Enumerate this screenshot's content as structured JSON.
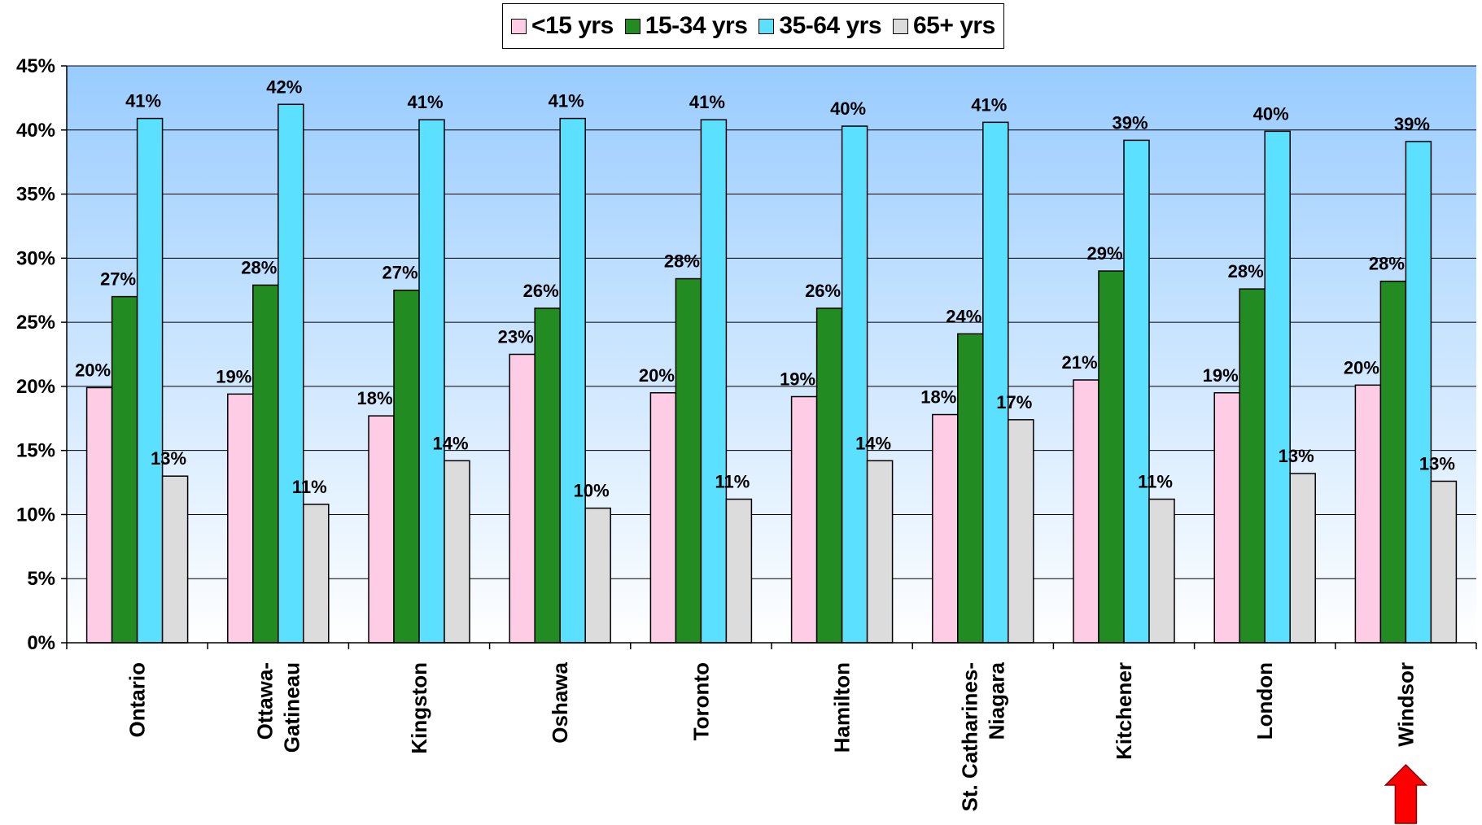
{
  "chart_data": {
    "type": "bar",
    "categories": [
      "Ontario",
      "Ottawa-Gatineau",
      "Kingston",
      "Oshawa",
      "Toronto",
      "Hamilton",
      "St. Catharines-Niagara",
      "Kitchener",
      "London",
      "Windsor"
    ],
    "category_lines": [
      [
        "Ontario"
      ],
      [
        "Ottawa-",
        "Gatineau"
      ],
      [
        "Kingston"
      ],
      [
        "Oshawa"
      ],
      [
        "Toronto"
      ],
      [
        "Hamilton"
      ],
      [
        "St. Catharines-",
        "Niagara"
      ],
      [
        "Kitchener"
      ],
      [
        "London"
      ],
      [
        "Windsor"
      ]
    ],
    "series": [
      {
        "name": "<15 yrs",
        "color": "#FFCCE6",
        "values": [
          0.199,
          0.194,
          0.177,
          0.225,
          0.195,
          0.192,
          0.178,
          0.205,
          0.195,
          0.201
        ],
        "labels": [
          "20%",
          "19%",
          "18%",
          "23%",
          "20%",
          "19%",
          "18%",
          "21%",
          "19%",
          "20%"
        ]
      },
      {
        "name": "15-34 yrs",
        "color": "#228B22",
        "values": [
          0.27,
          0.279,
          0.275,
          0.261,
          0.284,
          0.261,
          0.241,
          0.29,
          0.276,
          0.282
        ],
        "labels": [
          "27%",
          "28%",
          "27%",
          "26%",
          "28%",
          "26%",
          "24%",
          "29%",
          "28%",
          "28%"
        ]
      },
      {
        "name": "35-64 yrs",
        "color": "#5CE0FF",
        "values": [
          0.409,
          0.42,
          0.408,
          0.409,
          0.408,
          0.403,
          0.406,
          0.392,
          0.399,
          0.391
        ],
        "labels": [
          "41%",
          "42%",
          "41%",
          "41%",
          "41%",
          "40%",
          "41%",
          "39%",
          "40%",
          "39%"
        ]
      },
      {
        "name": "65+ yrs",
        "color": "#DCDCDC",
        "values": [
          0.13,
          0.108,
          0.142,
          0.105,
          0.112,
          0.142,
          0.174,
          0.112,
          0.132,
          0.126
        ],
        "labels": [
          "13%",
          "11%",
          "14%",
          "10%",
          "11%",
          "14%",
          "17%",
          "11%",
          "13%",
          "13%"
        ]
      }
    ],
    "y_ticks": [
      "0%",
      "5%",
      "10%",
      "15%",
      "20%",
      "25%",
      "30%",
      "35%",
      "40%",
      "45%"
    ],
    "ylim": [
      0,
      0.45
    ],
    "grid": true,
    "legend_position": "top-center",
    "highlight_category": "Windsor",
    "highlight_marker": "red-up-arrow",
    "plot_background": [
      "#99CCFF",
      "#FFFFFF"
    ]
  }
}
